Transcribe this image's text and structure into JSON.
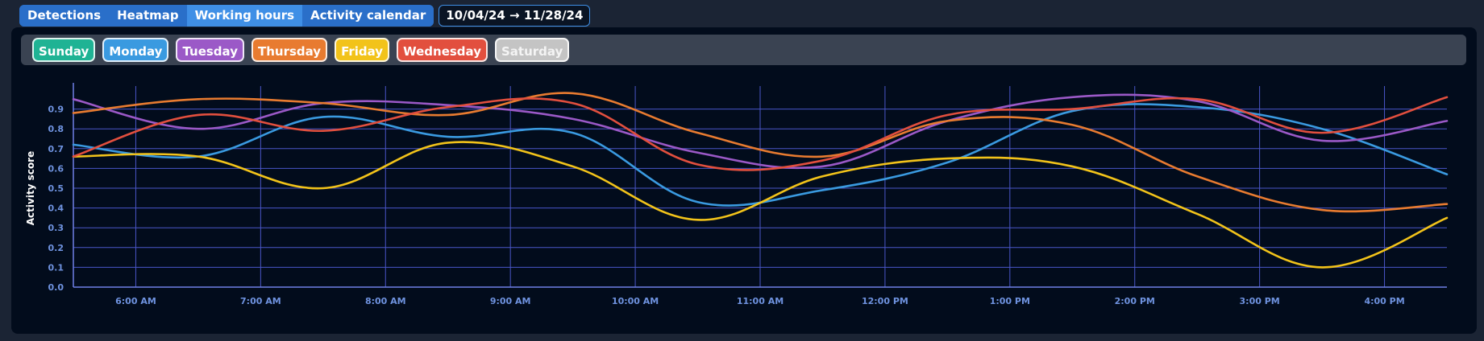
{
  "toolbar": {
    "tabs": [
      {
        "label": "Detections",
        "active": false
      },
      {
        "label": "Heatmap",
        "active": false
      },
      {
        "label": "Working hours",
        "active": true
      },
      {
        "label": "Activity calendar",
        "active": false
      }
    ],
    "date_range": "10/04/24 → 11/28/24"
  },
  "legend": [
    {
      "label": "Sunday",
      "color": "#1fb394",
      "enabled": true
    },
    {
      "label": "Monday",
      "color": "#3a9ae0",
      "enabled": true
    },
    {
      "label": "Tuesday",
      "color": "#9b59c7",
      "enabled": true
    },
    {
      "label": "Thursday",
      "color": "#e87b30",
      "enabled": true
    },
    {
      "label": "Friday",
      "color": "#f2c31a",
      "enabled": true
    },
    {
      "label": "Wednesday",
      "color": "#e24f3e",
      "enabled": true
    },
    {
      "label": "Saturday",
      "color": "#c4c4c4",
      "enabled": false
    }
  ],
  "chart_data": {
    "type": "line",
    "xlabel": "",
    "ylabel": "Activity score",
    "ylim": [
      0,
      1.0
    ],
    "xlim": [
      5.5,
      16.5
    ],
    "grid": true,
    "x_tick_values": [
      6,
      7,
      8,
      9,
      10,
      11,
      12,
      13,
      14,
      15,
      16
    ],
    "x_tick_labels": [
      "6:00 AM",
      "7:00 AM",
      "8:00 AM",
      "9:00 AM",
      "10:00 AM",
      "11:00 AM",
      "12:00 PM",
      "1:00 PM",
      "2:00 PM",
      "3:00 PM",
      "4:00 PM"
    ],
    "y_ticks": [
      "0.0",
      "0.1",
      "0.2",
      "0.3",
      "0.4",
      "0.5",
      "0.6",
      "0.7",
      "0.8",
      "0.9"
    ],
    "x": [
      5.5,
      6.5,
      7.5,
      8.5,
      9.5,
      10.5,
      11.5,
      12.5,
      13.5,
      14.5,
      15.5,
      16.5
    ],
    "series": [
      {
        "name": "Monday",
        "color": "#3a9ae0",
        "values": [
          0.72,
          0.66,
          0.86,
          0.76,
          0.78,
          0.43,
          0.49,
          0.63,
          0.89,
          0.91,
          0.8,
          0.57
        ]
      },
      {
        "name": "Tuesday",
        "color": "#9b59c7",
        "values": [
          0.95,
          0.8,
          0.93,
          0.92,
          0.85,
          0.68,
          0.61,
          0.84,
          0.96,
          0.94,
          0.74,
          0.84
        ]
      },
      {
        "name": "Thursday",
        "color": "#e87b30",
        "values": [
          0.88,
          0.95,
          0.93,
          0.87,
          0.98,
          0.78,
          0.66,
          0.84,
          0.82,
          0.56,
          0.39,
          0.42
        ]
      },
      {
        "name": "Friday",
        "color": "#f2c31a",
        "values": [
          0.66,
          0.66,
          0.5,
          0.73,
          0.61,
          0.34,
          0.56,
          0.65,
          0.61,
          0.37,
          0.1,
          0.35
        ]
      },
      {
        "name": "Wednesday",
        "color": "#e24f3e",
        "values": [
          0.66,
          0.87,
          0.79,
          0.91,
          0.93,
          0.62,
          0.64,
          0.87,
          0.9,
          0.95,
          0.78,
          0.96
        ]
      }
    ]
  }
}
